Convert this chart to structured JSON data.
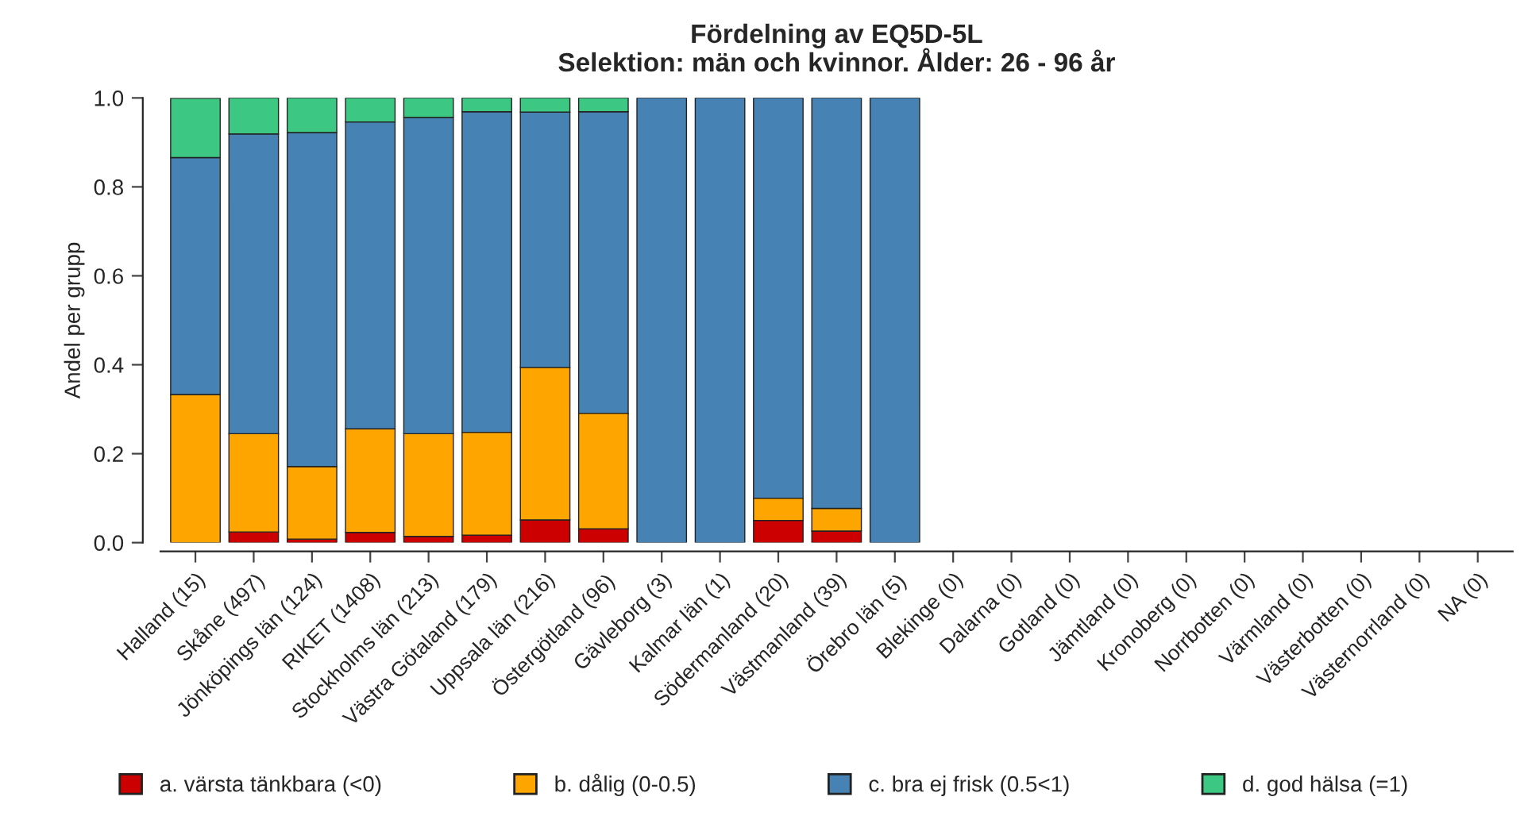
{
  "chart_data": {
    "type": "bar",
    "stacked": true,
    "title": "Fördelning av EQ5D-5L\nSelektion: män och kvinnor. Ålder: 26 - 96 år",
    "ylabel": "Andel per grupp",
    "categories": [
      "Halland (15)",
      "Skåne (497)",
      "Jönköpings län (124)",
      "RIKET (1408)",
      "Stockholms län (213)",
      "Västra Götaland (179)",
      "Uppsala län (216)",
      "Östergötland (96)",
      "Gävleborg (3)",
      "Kalmar län (1)",
      "Södermanland (20)",
      "Västmanland (39)",
      "Örebro län (5)",
      "Blekinge (0)",
      "Dalarna (0)",
      "Gotland (0)",
      "Jämtland (0)",
      "Kronoberg (0)",
      "Norrbotten (0)",
      "Värmland (0)",
      "Västerbotten (0)",
      "Västernorrland (0)",
      "NA (0)"
    ],
    "series": [
      {
        "name": "a. värsta tänkbara (<0)",
        "color": "#cd0000",
        "values": [
          0,
          0.024,
          0.008,
          0.023,
          0.014,
          0.017,
          0.051,
          0.031,
          0,
          0,
          0.05,
          0.026,
          0,
          null,
          null,
          null,
          null,
          null,
          null,
          null,
          null,
          null,
          null
        ]
      },
      {
        "name": "b. dålig (0-0.5)",
        "color": "#ffa500",
        "values": [
          0.333,
          0.221,
          0.163,
          0.233,
          0.231,
          0.231,
          0.343,
          0.26,
          0,
          0,
          0.05,
          0.051,
          0,
          null,
          null,
          null,
          null,
          null,
          null,
          null,
          null,
          null,
          null
        ]
      },
      {
        "name": "c. bra ej frisk (0.5<1)",
        "color": "#4682b4",
        "values": [
          0.533,
          0.674,
          0.751,
          0.69,
          0.711,
          0.721,
          0.574,
          0.678,
          1,
          1,
          0.9,
          0.923,
          1,
          null,
          null,
          null,
          null,
          null,
          null,
          null,
          null,
          null,
          null
        ]
      },
      {
        "name": "d. god hälsa (=1)",
        "color": "#3cc882",
        "values": [
          0.133,
          0.081,
          0.078,
          0.054,
          0.044,
          0.031,
          0.032,
          0.031,
          0,
          0,
          0,
          0,
          0,
          null,
          null,
          null,
          null,
          null,
          null,
          null,
          null,
          null,
          null
        ]
      }
    ],
    "ylim": [
      0,
      1
    ],
    "yticks": [
      "0.0",
      0.2,
      0.4,
      0.6,
      0.8,
      "1.0"
    ],
    "grid": false,
    "legend": "bottom"
  }
}
